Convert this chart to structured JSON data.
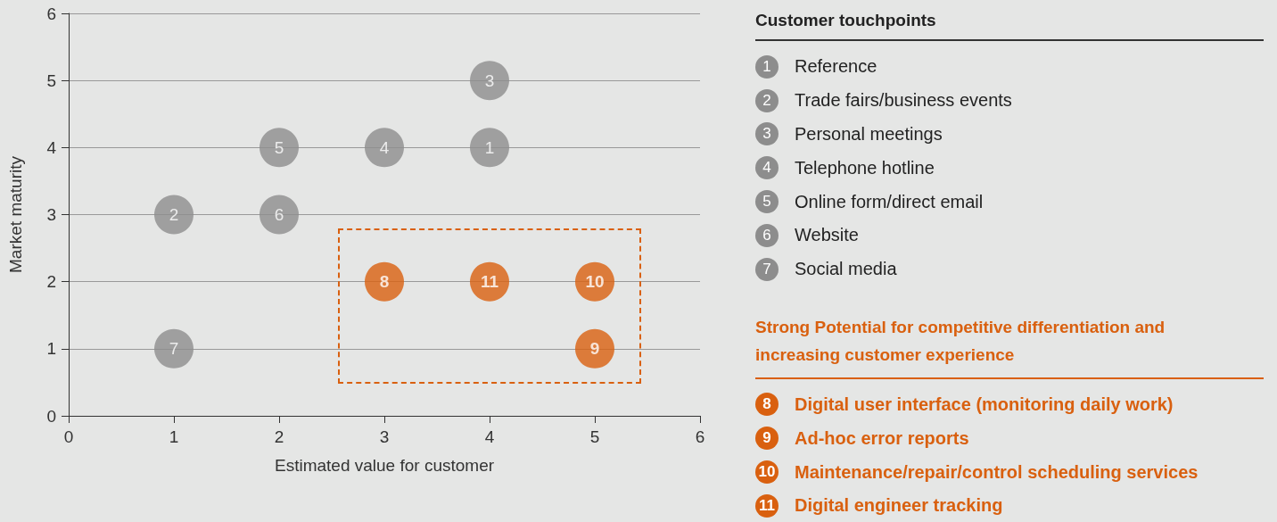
{
  "chart_data": {
    "type": "scatter",
    "xlabel": "Estimated value for customer",
    "ylabel": "Market maturity",
    "legend_title": "Customer touchpoints",
    "annotations": [
      {
        "text": "1",
        "x": 4,
        "y": 4
      },
      {
        "text": "2",
        "x": 1,
        "y": 3
      },
      {
        "text": "3",
        "x": 4,
        "y": 5
      },
      {
        "text": "4",
        "x": 3,
        "y": 4
      },
      {
        "text": "5",
        "x": 2,
        "y": 4
      },
      {
        "text": "6",
        "x": 2,
        "y": 3
      },
      {
        "text": "7",
        "x": 1,
        "y": 1
      },
      {
        "text": "8",
        "x": 3,
        "y": 2
      },
      {
        "text": "9",
        "x": 5,
        "y": 1
      },
      {
        "text": "10",
        "x": 5,
        "y": 2
      },
      {
        "text": "11",
        "x": 4,
        "y": 2
      },
      "Strong Potential for competitive differentiation and increasing customer experience"
    ],
    "xlim": [
      0,
      6
    ],
    "xticks": [
      0,
      1,
      2,
      3,
      4,
      5,
      6
    ],
    "ylim": [
      0,
      6
    ],
    "yticks": [
      0,
      1,
      2,
      3,
      4,
      5,
      6
    ],
    "grid": "y",
    "legend": "right",
    "marker": "circle",
    "series": [
      {
        "name": "Reference",
        "color": "#8d8d8d",
        "x": [
          4
        ],
        "values": [
          4
        ]
      },
      {
        "name": "Trade fairs/business events",
        "color": "#8d8d8d",
        "x": [
          1
        ],
        "values": [
          3
        ]
      },
      {
        "name": "Personal meetings",
        "color": "#8d8d8d",
        "x": [
          4
        ],
        "values": [
          5
        ]
      },
      {
        "name": "Telephone hotline",
        "color": "#8d8d8d",
        "x": [
          3
        ],
        "values": [
          4
        ]
      },
      {
        "name": "Online form/direct email",
        "color": "#8d8d8d",
        "x": [
          2
        ],
        "values": [
          4
        ]
      },
      {
        "name": "Website",
        "color": "#8d8d8d",
        "x": [
          2
        ],
        "values": [
          3
        ]
      },
      {
        "name": "Social media",
        "color": "#8d8d8d",
        "x": [
          1
        ],
        "values": [
          1
        ]
      },
      {
        "name": "Digital user interface (monitoring daily work)",
        "color": "#d9600f",
        "x": [
          3
        ],
        "values": [
          2
        ]
      },
      {
        "name": "Ad-hoc error reports",
        "color": "#d9600f",
        "x": [
          5
        ],
        "values": [
          1
        ]
      },
      {
        "name": "Maintenance/repair/control scheduling services",
        "color": "#d9600f",
        "x": [
          5
        ],
        "values": [
          2
        ]
      },
      {
        "name": "Digital engineer tracking",
        "color": "#d9600f",
        "x": [
          4
        ],
        "values": [
          2
        ]
      }
    ]
  }
}
